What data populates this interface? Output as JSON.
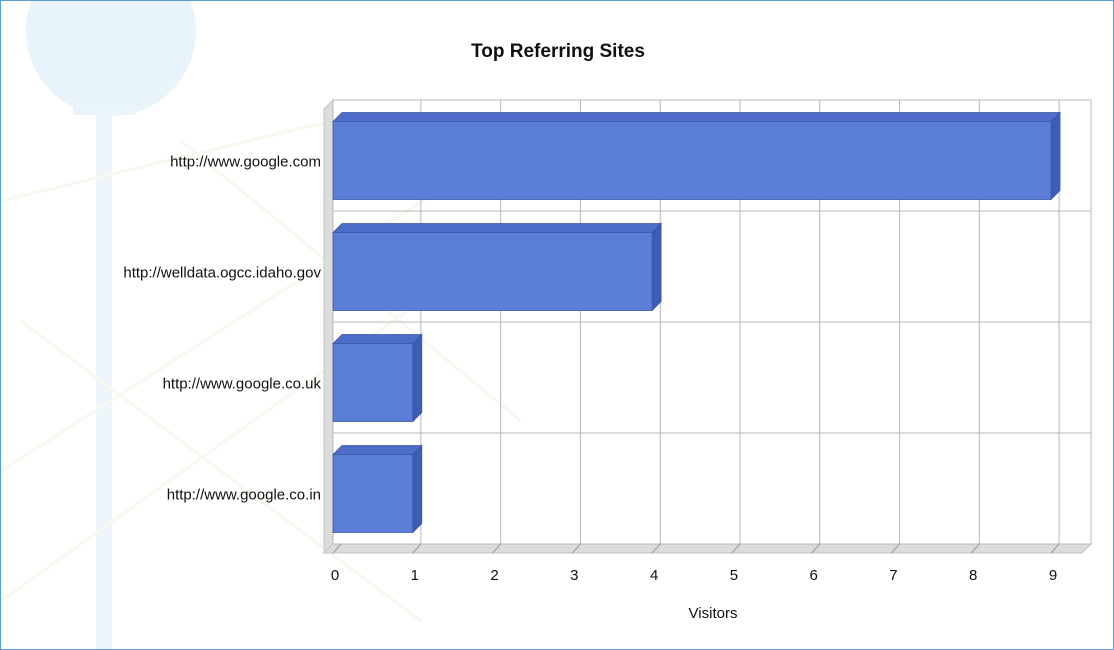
{
  "chart_data": {
    "type": "bar",
    "orientation": "horizontal",
    "title": "Top Referring Sites",
    "xlabel": "Visitors",
    "ylabel": "",
    "categories": [
      "http://www.google.com",
      "http://welldata.ogcc.idaho.gov",
      "http://www.google.co.uk",
      "http://www.google.co.in"
    ],
    "values": [
      9,
      4,
      1,
      1
    ],
    "xlim": [
      0,
      9
    ],
    "xticks": [
      "0",
      "1",
      "2",
      "3",
      "4",
      "5",
      "6",
      "7",
      "8",
      "9"
    ],
    "grid": true,
    "legend": "none",
    "style": "3d",
    "colors": {
      "bar": "#5b7fd6",
      "bar_top": "#4d6dc8",
      "bar_side": "#3f5cb3",
      "grid": "#b8b8b8",
      "wall": "#dcdcdc"
    }
  }
}
